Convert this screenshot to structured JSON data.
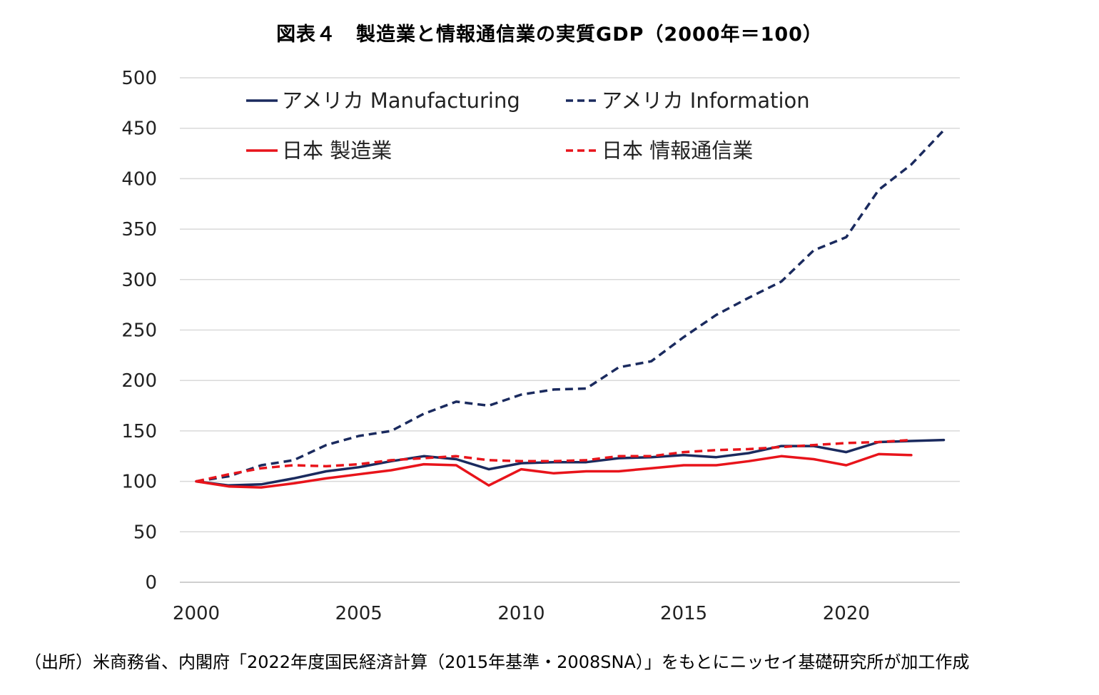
{
  "chart_data": {
    "type": "line",
    "title": "図表４　製造業と情報通信業の実質GDP（2000年＝100）",
    "xlabel": "",
    "ylabel": "",
    "ylim": [
      0,
      500
    ],
    "yticks": [
      0,
      50,
      100,
      150,
      200,
      250,
      300,
      350,
      400,
      450,
      500
    ],
    "xlim": [
      2000,
      2024
    ],
    "xticks": [
      2000,
      2005,
      2010,
      2015,
      2020
    ],
    "grid": true,
    "legend_position": "top-left",
    "series": [
      {
        "name": "アメリカ Manufacturing",
        "color": "#1a2a5e",
        "dash": "solid",
        "x": [
          2000,
          2001,
          2002,
          2003,
          2004,
          2005,
          2006,
          2007,
          2008,
          2009,
          2010,
          2011,
          2012,
          2013,
          2014,
          2015,
          2016,
          2017,
          2018,
          2019,
          2020,
          2021,
          2022,
          2023
        ],
        "values": [
          100,
          96,
          97,
          103,
          110,
          114,
          120,
          125,
          122,
          112,
          118,
          119,
          119,
          123,
          124,
          126,
          124,
          128,
          135,
          135,
          129,
          139,
          140,
          141
        ]
      },
      {
        "name": "アメリカ  Information",
        "color": "#1a2a5e",
        "dash": "dashed",
        "x": [
          2000,
          2001,
          2002,
          2003,
          2004,
          2005,
          2006,
          2007,
          2008,
          2009,
          2010,
          2011,
          2012,
          2013,
          2014,
          2015,
          2016,
          2017,
          2018,
          2019,
          2020,
          2021,
          2022,
          2023
        ],
        "values": [
          100,
          105,
          116,
          121,
          136,
          145,
          150,
          167,
          179,
          175,
          186,
          191,
          192,
          213,
          219,
          243,
          265,
          282,
          298,
          329,
          342,
          389,
          414,
          448
        ]
      },
      {
        "name": "日本 製造業",
        "color": "#e8141b",
        "dash": "solid",
        "x": [
          2000,
          2001,
          2002,
          2003,
          2004,
          2005,
          2006,
          2007,
          2008,
          2009,
          2010,
          2011,
          2012,
          2013,
          2014,
          2015,
          2016,
          2017,
          2018,
          2019,
          2020,
          2021,
          2022
        ],
        "values": [
          100,
          95,
          94,
          98,
          103,
          107,
          111,
          117,
          116,
          96,
          112,
          108,
          110,
          110,
          113,
          116,
          116,
          120,
          125,
          122,
          116,
          127,
          126
        ]
      },
      {
        "name": "日本 情報通信業",
        "color": "#e8141b",
        "dash": "dashed",
        "x": [
          2000,
          2001,
          2002,
          2003,
          2004,
          2005,
          2006,
          2007,
          2008,
          2009,
          2010,
          2011,
          2012,
          2013,
          2014,
          2015,
          2016,
          2017,
          2018,
          2019,
          2020,
          2021,
          2022
        ],
        "values": [
          100,
          107,
          113,
          116,
          115,
          117,
          121,
          123,
          125,
          121,
          120,
          120,
          121,
          125,
          125,
          129,
          131,
          132,
          134,
          136,
          138,
          139,
          141
        ]
      }
    ]
  },
  "source_note": "（出所）米商務省、内閣府「2022年度国民経済計算（2015年基準・2008SNA）」をもとにニッセイ基礎研究所が加工作成"
}
